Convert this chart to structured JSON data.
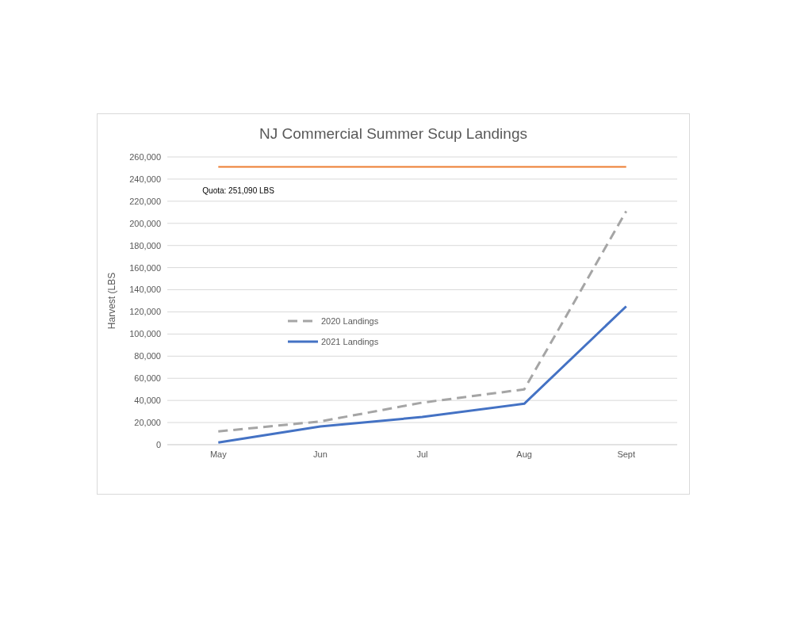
{
  "chart_data": {
    "type": "line",
    "title": "NJ Commercial Summer Scup Landings",
    "ylabel": "Harvest (LBS",
    "categories": [
      "May",
      "Jun",
      "Jul",
      "Aug",
      "Sept"
    ],
    "series": [
      {
        "name": "2020 Landings",
        "color": "#a5a5a5",
        "line_style": "dashed",
        "values": [
          12000,
          21000,
          38000,
          50000,
          211000
        ]
      },
      {
        "name": "2021 Landings",
        "color": "#4472c4",
        "line_style": "solid",
        "values": [
          2000,
          16500,
          25000,
          37000,
          125000
        ]
      }
    ],
    "ylim": [
      0,
      260000
    ],
    "yticks": [
      0,
      {
        "value": 20000,
        "label": "20,000"
      },
      {
        "value": 40000,
        "label": "40,000"
      },
      {
        "value": 60000,
        "label": "60,000"
      },
      {
        "value": 80000,
        "label": "80,000"
      },
      {
        "value": 100000,
        "label": "100,000"
      },
      {
        "value": 120000,
        "label": "120,000"
      },
      {
        "value": 140000,
        "label": "140,000"
      },
      {
        "value": 160000,
        "label": "160,000"
      },
      {
        "value": 180000,
        "label": "180,000"
      },
      {
        "value": 200000,
        "label": "200,000"
      },
      {
        "value": 220000,
        "label": "220,000"
      },
      {
        "value": 240000,
        "label": "240,000"
      },
      {
        "value": 260000,
        "label": "260,000"
      }
    ],
    "ref_lines": [
      {
        "axis": "y",
        "value": 251090,
        "label": "Quota: 251,090 LBS",
        "color": "#ed7d31"
      }
    ],
    "grid": "y",
    "legend": "left",
    "marker": "none"
  }
}
